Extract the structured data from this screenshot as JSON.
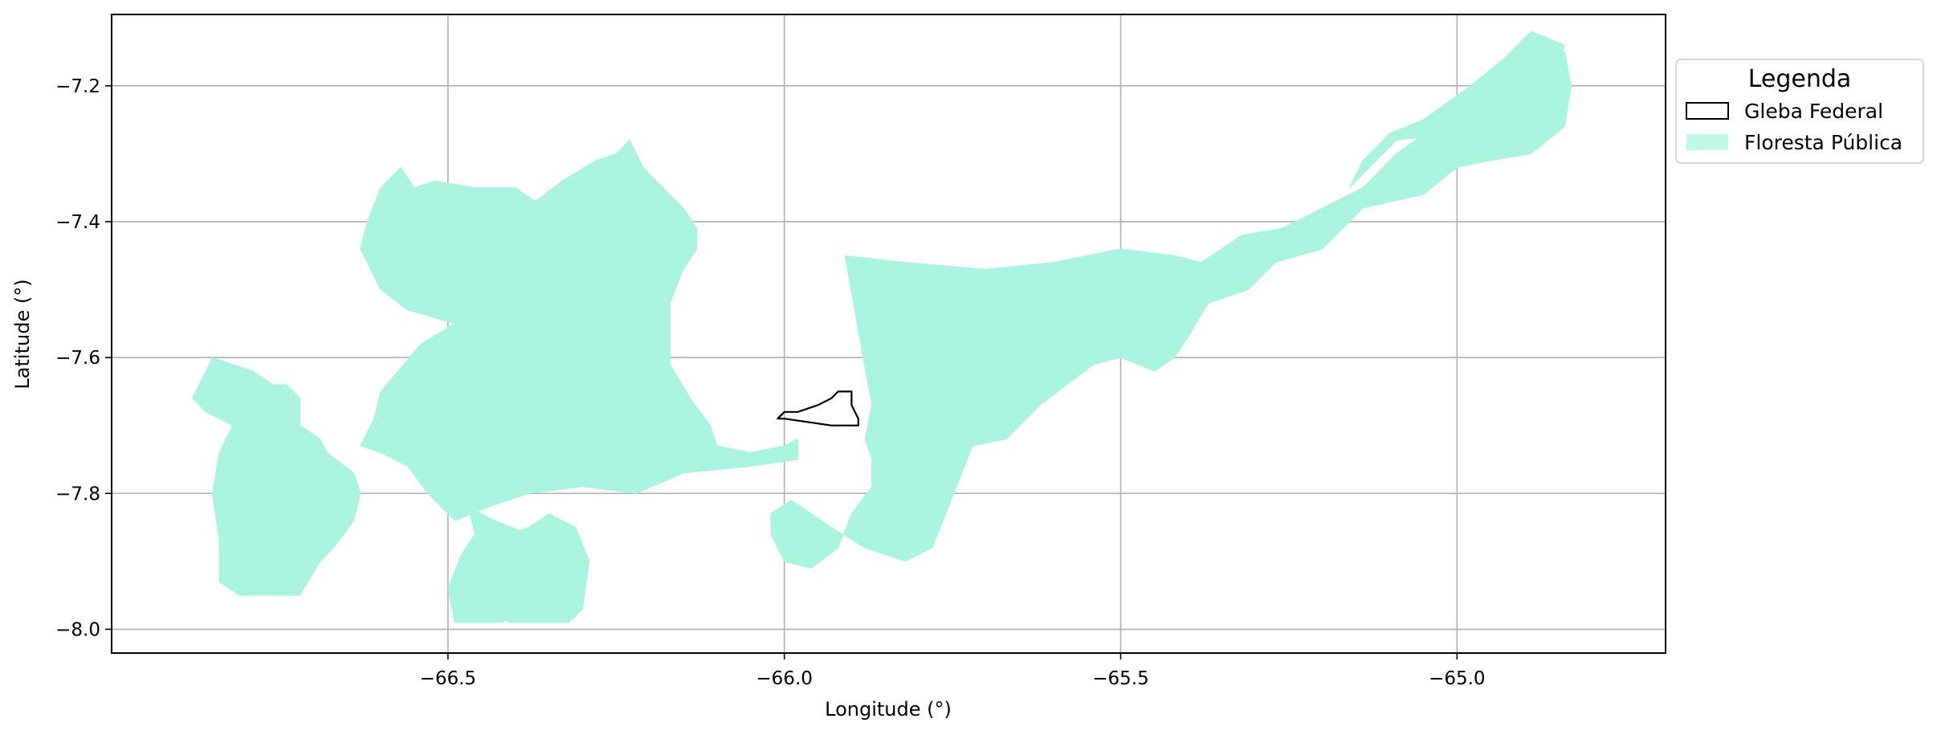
{
  "chart_data": {
    "type": "map",
    "xlabel": "Longitude (°)",
    "ylabel": "Latitude (°)",
    "xlim": [
      -67.0,
      -64.69
    ],
    "ylim": [
      -8.035,
      -7.095
    ],
    "x_ticks": [
      -66.5,
      -66.0,
      -65.5,
      -65.0
    ],
    "x_tick_labels": [
      "−66.5",
      "−66.0",
      "−65.5",
      "−65.0"
    ],
    "y_ticks": [
      -7.2,
      -7.4,
      -7.6,
      -7.8,
      -8.0
    ],
    "y_tick_labels": [
      "−7.2",
      "−7.4",
      "−7.6",
      "−7.8",
      "−8.0"
    ],
    "grid": true,
    "legend": {
      "title": "Legenda",
      "placement": "outside-upper-right",
      "entries": [
        {
          "label": "Gleba Federal",
          "style": "outline",
          "edge": "#000000",
          "fill": "none"
        },
        {
          "label": "Floresta Pública",
          "style": "fill",
          "fill": "#aaf4e0"
        }
      ]
    },
    "layers": [
      {
        "name": "Floresta Pública",
        "fill": "#aaf4e0",
        "polygons": [
          [
            [
              -66.88,
              -7.66
            ],
            [
              -66.85,
              -7.6
            ],
            [
              -66.82,
              -7.61
            ],
            [
              -66.79,
              -7.62
            ],
            [
              -66.76,
              -7.64
            ],
            [
              -66.74,
              -7.64
            ],
            [
              -66.72,
              -7.66
            ],
            [
              -66.72,
              -7.7
            ],
            [
              -66.69,
              -7.72
            ],
            [
              -66.68,
              -7.74
            ],
            [
              -66.64,
              -7.77
            ],
            [
              -66.63,
              -7.8
            ],
            [
              -66.64,
              -7.84
            ],
            [
              -66.67,
              -7.88
            ],
            [
              -66.69,
              -7.9
            ],
            [
              -66.72,
              -7.95
            ],
            [
              -66.76,
              -7.95
            ],
            [
              -66.81,
              -7.95
            ],
            [
              -66.84,
              -7.93
            ],
            [
              -66.84,
              -7.87
            ],
            [
              -66.85,
              -7.8
            ],
            [
              -66.84,
              -7.74
            ],
            [
              -66.82,
              -7.7
            ],
            [
              -66.86,
              -7.68
            ]
          ],
          [
            [
              -66.63,
              -7.73
            ],
            [
              -66.61,
              -7.69
            ],
            [
              -66.6,
              -7.65
            ],
            [
              -66.54,
              -7.58
            ],
            [
              -66.49,
              -7.55
            ],
            [
              -66.56,
              -7.53
            ],
            [
              -66.6,
              -7.5
            ],
            [
              -66.63,
              -7.44
            ],
            [
              -66.62,
              -7.4
            ],
            [
              -66.6,
              -7.35
            ],
            [
              -66.57,
              -7.32
            ],
            [
              -66.55,
              -7.35
            ],
            [
              -66.52,
              -7.34
            ],
            [
              -66.46,
              -7.35
            ],
            [
              -66.4,
              -7.35
            ],
            [
              -66.37,
              -7.37
            ],
            [
              -66.33,
              -7.34
            ],
            [
              -66.28,
              -7.31
            ],
            [
              -66.25,
              -7.3
            ],
            [
              -66.23,
              -7.28
            ],
            [
              -66.21,
              -7.32
            ],
            [
              -66.17,
              -7.36
            ],
            [
              -66.15,
              -7.38
            ],
            [
              -66.13,
              -7.41
            ],
            [
              -66.13,
              -7.44
            ],
            [
              -66.15,
              -7.47
            ],
            [
              -66.17,
              -7.52
            ],
            [
              -66.17,
              -7.61
            ],
            [
              -66.14,
              -7.66
            ],
            [
              -66.11,
              -7.7
            ],
            [
              -66.1,
              -7.73
            ],
            [
              -66.05,
              -7.74
            ],
            [
              -66.0,
              -7.73
            ],
            [
              -65.98,
              -7.72
            ],
            [
              -65.98,
              -7.75
            ],
            [
              -66.05,
              -7.76
            ],
            [
              -66.15,
              -7.77
            ],
            [
              -66.22,
              -7.8
            ],
            [
              -66.3,
              -7.79
            ],
            [
              -66.38,
              -7.8
            ],
            [
              -66.44,
              -7.82
            ],
            [
              -66.49,
              -7.84
            ],
            [
              -66.53,
              -7.8
            ],
            [
              -66.56,
              -7.76
            ],
            [
              -66.6,
              -7.74
            ]
          ],
          [
            [
              -66.47,
              -7.82
            ],
            [
              -66.43,
              -7.84
            ],
            [
              -66.38,
              -7.86
            ],
            [
              -66.36,
              -7.91
            ],
            [
              -66.35,
              -7.95
            ],
            [
              -66.42,
              -7.99
            ],
            [
              -66.49,
              -7.99
            ],
            [
              -66.5,
              -7.94
            ],
            [
              -66.48,
              -7.89
            ],
            [
              -66.46,
              -7.86
            ]
          ],
          [
            [
              -66.35,
              -7.83
            ],
            [
              -66.31,
              -7.85
            ],
            [
              -66.29,
              -7.9
            ],
            [
              -66.3,
              -7.97
            ],
            [
              -66.32,
              -7.99
            ],
            [
              -66.41,
              -7.99
            ],
            [
              -66.44,
              -7.96
            ],
            [
              -66.47,
              -7.93
            ],
            [
              -66.45,
              -7.88
            ],
            [
              -66.41,
              -7.86
            ],
            [
              -66.38,
              -7.85
            ]
          ],
          [
            [
              -65.91,
              -7.45
            ],
            [
              -65.82,
              -7.46
            ],
            [
              -65.7,
              -7.47
            ],
            [
              -65.6,
              -7.46
            ],
            [
              -65.5,
              -7.44
            ],
            [
              -65.42,
              -7.45
            ],
            [
              -65.38,
              -7.46
            ],
            [
              -65.32,
              -7.42
            ],
            [
              -65.26,
              -7.41
            ],
            [
              -65.2,
              -7.38
            ],
            [
              -65.14,
              -7.35
            ],
            [
              -65.09,
              -7.3
            ],
            [
              -65.02,
              -7.25
            ],
            [
              -64.96,
              -7.22
            ],
            [
              -64.9,
              -7.17
            ],
            [
              -64.84,
              -7.15
            ],
            [
              -64.83,
              -7.2
            ],
            [
              -64.84,
              -7.26
            ],
            [
              -64.89,
              -7.3
            ],
            [
              -64.95,
              -7.31
            ],
            [
              -65.0,
              -7.32
            ],
            [
              -65.05,
              -7.36
            ],
            [
              -65.14,
              -7.38
            ],
            [
              -65.2,
              -7.44
            ],
            [
              -65.27,
              -7.46
            ],
            [
              -65.31,
              -7.5
            ],
            [
              -65.37,
              -7.52
            ],
            [
              -65.4,
              -7.57
            ],
            [
              -65.42,
              -7.6
            ],
            [
              -65.45,
              -7.62
            ],
            [
              -65.5,
              -7.6
            ],
            [
              -65.54,
              -7.61
            ],
            [
              -65.58,
              -7.64
            ],
            [
              -65.62,
              -7.67
            ],
            [
              -65.67,
              -7.72
            ],
            [
              -65.72,
              -7.73
            ],
            [
              -65.74,
              -7.78
            ],
            [
              -65.76,
              -7.83
            ],
            [
              -65.78,
              -7.88
            ],
            [
              -65.82,
              -7.9
            ],
            [
              -65.88,
              -7.88
            ],
            [
              -65.93,
              -7.85
            ],
            [
              -65.99,
              -7.81
            ],
            [
              -66.02,
              -7.83
            ],
            [
              -66.02,
              -7.86
            ],
            [
              -66.0,
              -7.9
            ],
            [
              -65.96,
              -7.91
            ],
            [
              -65.92,
              -7.88
            ],
            [
              -65.9,
              -7.83
            ],
            [
              -65.87,
              -7.79
            ],
            [
              -65.87,
              -7.75
            ],
            [
              -65.88,
              -7.72
            ],
            [
              -65.87,
              -7.67
            ]
          ],
          [
            [
              -65.16,
              -7.35
            ],
            [
              -65.09,
              -7.28
            ],
            [
              -65.0,
              -7.27
            ],
            [
              -64.93,
              -7.23
            ],
            [
              -64.88,
              -7.2
            ],
            [
              -64.85,
              -7.17
            ],
            [
              -64.84,
              -7.14
            ],
            [
              -64.89,
              -7.12
            ],
            [
              -64.93,
              -7.16
            ],
            [
              -64.98,
              -7.2
            ],
            [
              -65.05,
              -7.25
            ],
            [
              -65.1,
              -7.27
            ],
            [
              -65.14,
              -7.31
            ]
          ]
        ]
      },
      {
        "name": "Gleba Federal",
        "edge": "#000000",
        "fill": "none",
        "polygons": [
          [
            [
              -66.01,
              -7.69
            ],
            [
              -66.0,
              -7.68
            ],
            [
              -65.98,
              -7.68
            ],
            [
              -65.95,
              -7.67
            ],
            [
              -65.93,
              -7.66
            ],
            [
              -65.92,
              -7.65
            ],
            [
              -65.9,
              -7.65
            ],
            [
              -65.9,
              -7.67
            ],
            [
              -65.89,
              -7.69
            ],
            [
              -65.89,
              -7.7
            ],
            [
              -65.93,
              -7.7
            ],
            [
              -66.0,
              -7.69
            ]
          ]
        ]
      }
    ]
  }
}
